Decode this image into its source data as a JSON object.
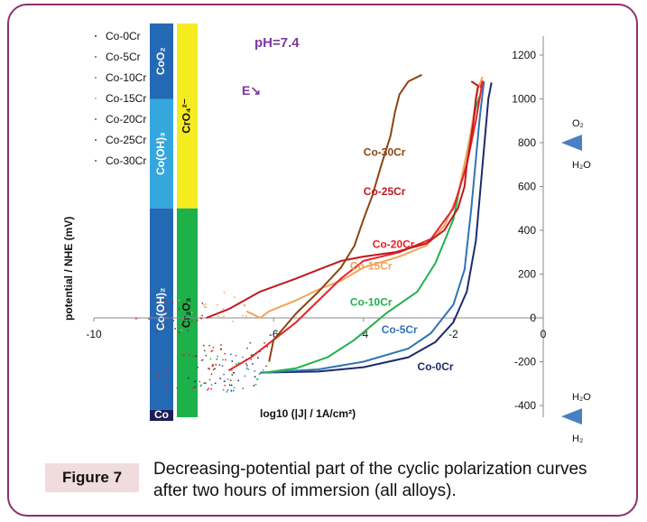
{
  "chart_data": {
    "type": "scatter",
    "title": "pH=7.4",
    "scan_direction_label": "E↘",
    "xlabel": "log10 (|J| / 1A/cm²)",
    "ylabel": "potential / NHE (mV)",
    "xlim": [
      -10,
      0
    ],
    "ylim": [
      -450,
      1250
    ],
    "x_ticks": [
      "-10",
      "-6",
      "-4",
      "-2",
      "0"
    ],
    "x_tick_values": [
      -10,
      -6,
      -4,
      -2,
      0
    ],
    "y_ticks": [
      "-400",
      "-200",
      "0",
      "200",
      "400",
      "600",
      "800",
      "1000",
      "1200"
    ],
    "y_tick_values": [
      -400,
      -200,
      0,
      200,
      400,
      600,
      800,
      1000,
      1200
    ],
    "grid": false,
    "legend_position": "top-left",
    "series": [
      {
        "name": "Co-0Cr",
        "color": "#1f2a6b",
        "label_at": [
          -2.8,
          -240
        ],
        "points": [
          [
            -6.3,
            -250
          ],
          [
            -5,
            -245
          ],
          [
            -4,
            -225
          ],
          [
            -3,
            -180
          ],
          [
            -2.4,
            -110
          ],
          [
            -2.0,
            -20
          ],
          [
            -1.7,
            120
          ],
          [
            -1.5,
            350
          ],
          [
            -1.35,
            700
          ],
          [
            -1.22,
            1000
          ],
          [
            -1.15,
            1075
          ]
        ]
      },
      {
        "name": "Co-5Cr",
        "color": "#2e74b5",
        "label_at": [
          -3.6,
          -70
        ],
        "points": [
          [
            -6.3,
            -250
          ],
          [
            -5,
            -235
          ],
          [
            -4,
            -200
          ],
          [
            -3,
            -140
          ],
          [
            -2.5,
            -70
          ],
          [
            -2.0,
            60
          ],
          [
            -1.75,
            220
          ],
          [
            -1.6,
            500
          ],
          [
            -1.42,
            900
          ],
          [
            -1.32,
            1080
          ]
        ]
      },
      {
        "name": "Co-10Cr",
        "color": "#22b14c",
        "label_at": [
          -4.3,
          55
        ],
        "points": [
          [
            -6.2,
            -250
          ],
          [
            -5.5,
            -230
          ],
          [
            -4.8,
            -180
          ],
          [
            -4.2,
            -100
          ],
          [
            -3.5,
            20
          ],
          [
            -2.8,
            120
          ],
          [
            -2.4,
            250
          ],
          [
            -2.0,
            450
          ],
          [
            -1.75,
            700
          ],
          [
            -1.5,
            960
          ],
          [
            -1.42,
            1010
          ]
        ]
      },
      {
        "name": "Co-15Cr",
        "color": "#f4a259",
        "label_at": [
          -4.3,
          220
        ],
        "points": [
          [
            -6.6,
            30
          ],
          [
            -6.3,
            0
          ],
          [
            -6.1,
            30
          ],
          [
            -5.5,
            80
          ],
          [
            -5,
            130
          ],
          [
            -4.5,
            170
          ],
          [
            -4.0,
            230
          ],
          [
            -3.2,
            280
          ],
          [
            -2.6,
            330
          ],
          [
            -2.2,
            420
          ],
          [
            -1.9,
            560
          ],
          [
            -1.65,
            800
          ],
          [
            -1.45,
            1050
          ],
          [
            -1.35,
            1100
          ]
        ]
      },
      {
        "name": "Co-20Cr",
        "color": "#e8232a",
        "label_at": [
          -3.8,
          320
        ],
        "points": [
          [
            -7,
            -240
          ],
          [
            -6.5,
            -180
          ],
          [
            -6.0,
            -100
          ],
          [
            -5.5,
            -20
          ],
          [
            -5,
            80
          ],
          [
            -4.5,
            180
          ],
          [
            -4.0,
            260
          ],
          [
            -3.2,
            300
          ],
          [
            -2.5,
            360
          ],
          [
            -2.0,
            500
          ],
          [
            -1.7,
            700
          ],
          [
            -1.5,
            900
          ],
          [
            -1.35,
            1080
          ],
          [
            -1.4,
            1050
          ]
        ]
      },
      {
        "name": "Co-25Cr",
        "color": "#c0181f",
        "label_at": [
          -4.0,
          560
        ],
        "points": [
          [
            -7.5,
            0
          ],
          [
            -7,
            40
          ],
          [
            -6.3,
            120
          ],
          [
            -5.5,
            180
          ],
          [
            -5,
            220
          ],
          [
            -4.5,
            260
          ],
          [
            -4,
            280
          ],
          [
            -3.3,
            300
          ],
          [
            -2.6,
            340
          ],
          [
            -2.2,
            400
          ],
          [
            -1.9,
            500
          ],
          [
            -1.75,
            600
          ],
          [
            -1.7,
            700
          ],
          [
            -1.62,
            800
          ],
          [
            -1.55,
            900
          ],
          [
            -1.5,
            1000
          ],
          [
            -1.45,
            1060
          ],
          [
            -1.6,
            1080
          ]
        ]
      },
      {
        "name": "Co-30Cr",
        "color": "#8b4513",
        "label_at": [
          -4.0,
          740
        ],
        "points": [
          [
            -6.1,
            -200
          ],
          [
            -6.0,
            -100
          ],
          [
            -5.5,
            20
          ],
          [
            -5,
            120
          ],
          [
            -4.5,
            230
          ],
          [
            -4.2,
            330
          ],
          [
            -4.0,
            450
          ],
          [
            -3.8,
            560
          ],
          [
            -3.6,
            700
          ],
          [
            -3.4,
            830
          ],
          [
            -3.3,
            940
          ],
          [
            -3.2,
            1020
          ],
          [
            -3.0,
            1080
          ],
          [
            -2.7,
            1110
          ]
        ]
      }
    ],
    "phases": [
      {
        "label": "CoO₂",
        "color": "#2469b3"
      },
      {
        "label": "Co(OH)₃",
        "color": "#35a7de"
      },
      {
        "label": "Co(OH)₂",
        "color": "#2469b3"
      },
      {
        "label": "Co",
        "color": "#1c1d57"
      },
      {
        "label": "CrO₄²⁻",
        "color": "#f5ec1f"
      },
      {
        "label": "Cr₂O₃",
        "color": "#1db14a"
      }
    ],
    "phase_bounds_mV": {
      "CoO2_Co(OH)3": 1000,
      "Co(OH)3_Co(OH)2": 500,
      "Co(OH)2_Co": -420,
      "CrO4_Cr2O3": 500
    },
    "water_lines": [
      {
        "upper": "O₂",
        "lower": "H₂O",
        "potential": 800
      },
      {
        "upper": "H₂O",
        "lower": "H₂",
        "potential": -450
      }
    ]
  },
  "caption": {
    "label": "Figure 7",
    "text": "Decreasing-potential part of the cyclic polarization curves after two hours of immersion (all alloys)."
  }
}
